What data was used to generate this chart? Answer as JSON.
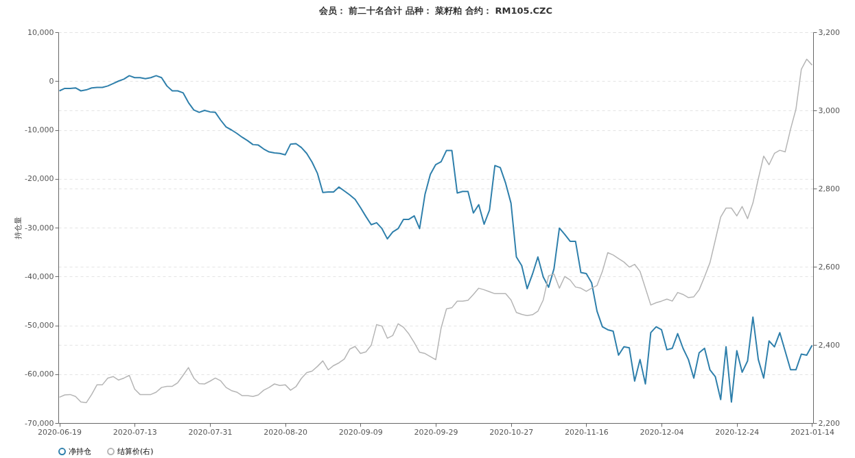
{
  "chart_data": {
    "type": "line",
    "title": "会员： 前二十名合计 品种： 菜籽粕 合约： RM105.CZC",
    "ylabel": "持仓量",
    "categories": [
      "2020-06-19",
      null,
      null,
      null,
      null,
      null,
      null,
      null,
      null,
      null,
      null,
      null,
      null,
      null,
      "2020-07-13",
      null,
      null,
      null,
      null,
      null,
      null,
      null,
      null,
      null,
      null,
      null,
      null,
      null,
      "2020-07-31",
      null,
      null,
      null,
      null,
      null,
      null,
      null,
      null,
      null,
      null,
      null,
      null,
      null,
      "2020-08-20",
      null,
      null,
      null,
      null,
      null,
      null,
      null,
      null,
      null,
      null,
      null,
      null,
      null,
      "2020-09-09",
      null,
      null,
      null,
      null,
      null,
      null,
      null,
      null,
      null,
      null,
      null,
      null,
      null,
      "2020-09-29",
      null,
      null,
      null,
      null,
      null,
      null,
      null,
      null,
      null,
      null,
      null,
      null,
      null,
      "2020-10-27",
      null,
      null,
      null,
      null,
      null,
      null,
      null,
      null,
      null,
      null,
      null,
      null,
      null,
      "2020-11-16",
      null,
      null,
      null,
      null,
      null,
      null,
      null,
      null,
      null,
      null,
      null,
      null,
      null,
      "2020-12-04",
      null,
      null,
      null,
      null,
      null,
      null,
      null,
      null,
      null,
      null,
      null,
      null,
      null,
      "2020-12-24",
      null,
      null,
      null,
      null,
      null,
      null,
      null,
      null,
      null,
      null,
      null,
      null,
      null,
      "2021-01-14"
    ],
    "series": [
      {
        "name": "净持仓",
        "color": "#2e7fab",
        "values": [
          -2000,
          -1500,
          -1500,
          -1400,
          -2000,
          -1800,
          -1400,
          -1300,
          -1300,
          -1000,
          -500,
          0,
          400,
          1100,
          700,
          700,
          500,
          700,
          1100,
          700,
          -1000,
          -2000,
          -2000,
          -2400,
          -4400,
          -5900,
          -6400,
          -6000,
          -6300,
          -6400,
          -8000,
          -9400,
          -10000,
          -10700,
          -11500,
          -12200,
          -13000,
          -13100,
          -13900,
          -14500,
          -14700,
          -14800,
          -15100,
          -12900,
          -12800,
          -13600,
          -14800,
          -16600,
          -18900,
          -22800,
          -22700,
          -22700,
          -21700,
          -22500,
          -23300,
          -24200,
          -25900,
          -27700,
          -29400,
          -29000,
          -30200,
          -32300,
          -30900,
          -30200,
          -28300,
          -28300,
          -27600,
          -30200,
          -23200,
          -19100,
          -17100,
          -16500,
          -14200,
          -14200,
          -22900,
          -22600,
          -22600,
          -27000,
          -25300,
          -29300,
          -26400,
          -17300,
          -17700,
          -20900,
          -25000,
          -36000,
          -37800,
          -42500,
          -39500,
          -36000,
          -40100,
          -42200,
          -38400,
          -30100,
          -31400,
          -32800,
          -32800,
          -39200,
          -39400,
          -41300,
          -47100,
          -50300,
          -50900,
          -51200,
          -56100,
          -54400,
          -54600,
          -61400,
          -57000,
          -62000,
          -51500,
          -50300,
          -50900,
          -55000,
          -54700,
          -51700,
          -54700,
          -57000,
          -60800,
          -55600,
          -54700,
          -59100,
          -60500,
          -65200,
          -54400,
          -65700,
          -55200,
          -59600,
          -57300,
          -48300,
          -57000,
          -60800,
          -53200,
          -54400,
          -51500,
          -55300,
          -59100,
          -59100,
          -55900,
          -56100,
          -54100
        ]
      },
      {
        "name": "结算价(右)",
        "color": "#b5b5b5",
        "axis": "y2",
        "values": [
          2266,
          2272,
          2273,
          2268,
          2254,
          2252,
          2273,
          2298,
          2298,
          2315,
          2319,
          2310,
          2315,
          2322,
          2287,
          2273,
          2273,
          2273,
          2279,
          2291,
          2294,
          2294,
          2303,
          2322,
          2342,
          2315,
          2301,
          2300,
          2307,
          2315,
          2308,
          2291,
          2283,
          2279,
          2270,
          2270,
          2268,
          2272,
          2284,
          2291,
          2300,
          2296,
          2298,
          2284,
          2293,
          2314,
          2329,
          2333,
          2345,
          2359,
          2336,
          2347,
          2354,
          2364,
          2389,
          2396,
          2378,
          2382,
          2399,
          2452,
          2448,
          2417,
          2424,
          2454,
          2445,
          2428,
          2406,
          2381,
          2378,
          2370,
          2362,
          2443,
          2492,
          2495,
          2512,
          2512,
          2514,
          2529,
          2545,
          2541,
          2536,
          2531,
          2531,
          2531,
          2515,
          2483,
          2478,
          2475,
          2477,
          2486,
          2515,
          2577,
          2581,
          2545,
          2575,
          2566,
          2548,
          2545,
          2537,
          2545,
          2552,
          2588,
          2636,
          2630,
          2621,
          2612,
          2599,
          2606,
          2588,
          2545,
          2502,
          2508,
          2512,
          2517,
          2512,
          2534,
          2529,
          2521,
          2523,
          2541,
          2574,
          2610,
          2668,
          2727,
          2750,
          2750,
          2730,
          2754,
          2723,
          2763,
          2825,
          2883,
          2861,
          2890,
          2898,
          2894,
          2952,
          3003,
          3105,
          3131,
          3116
        ]
      }
    ],
    "ylim": [
      -70000,
      10000
    ],
    "yticks": [
      {
        "value": -70000,
        "label": "-70,000"
      },
      {
        "value": -60000,
        "label": "-60,000"
      },
      {
        "value": -50000,
        "label": "-50,000"
      },
      {
        "value": -40000,
        "label": "-40,000"
      },
      {
        "value": -30000,
        "label": "-30,000"
      },
      {
        "value": -20000,
        "label": "-20,000"
      },
      {
        "value": -10000,
        "label": "-10,000"
      },
      0,
      {
        "value": 10000,
        "label": "10,000"
      }
    ],
    "y2lim": [
      2200,
      3200
    ],
    "y2ticks": [
      {
        "value": 2200,
        "label": "2,200"
      },
      {
        "value": 2400,
        "label": "2,400"
      },
      {
        "value": 2600,
        "label": "2,600"
      },
      {
        "value": 2800,
        "label": "2,800"
      },
      {
        "value": 3000,
        "label": "3,000"
      },
      {
        "value": 3200,
        "label": "3,200"
      }
    ],
    "grid": "y",
    "legend": "bottom",
    "marker": "none",
    "line_style": "solid"
  }
}
